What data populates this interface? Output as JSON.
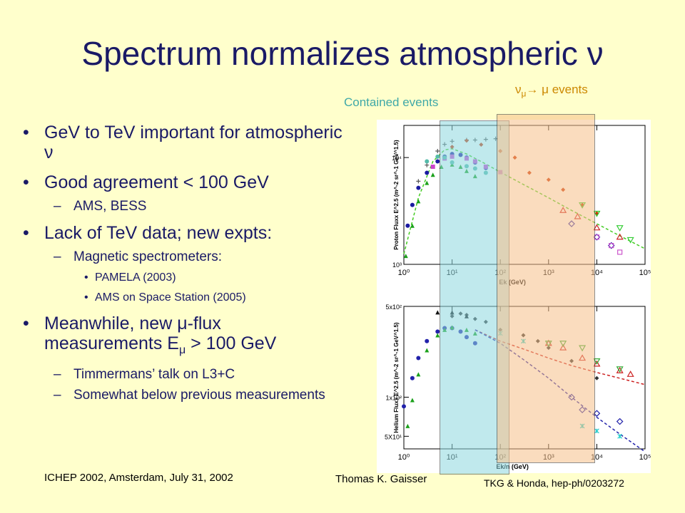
{
  "title": "Spectrum normalizes atmospheric ν",
  "bullets": {
    "b1": "GeV to TeV important for atmospheric ν",
    "b2": "Good agreement < 100 GeV",
    "b2_sub1": "AMS, BESS",
    "b3": "Lack of TeV data; new expts:",
    "b3_sub1": "Magnetic spectrometers:",
    "b3_sub1_sub1": "PAMELA (2003)",
    "b3_sub1_sub2": "AMS on Space Station (2005)",
    "b4_line1": "Meanwhile, new μ-flux",
    "b4_line2_pre": "measurements E",
    "b4_line2_sub": "μ",
    "b4_line2_post": " > 100 GeV",
    "b4_sub1": "Timmermans’ talk on L3+C",
    "b4_sub2": "Somewhat below previous measurements"
  },
  "footer": {
    "conference": "ICHEP 2002, Amsterdam, July 31, 2002",
    "author": "Thomas K. Gaisser",
    "reference": "TKG & Honda, hep-ph/0203272"
  },
  "overlays": {
    "contained_label": "Contained events",
    "muon_label_nu": "ν",
    "muon_label_nu_sub": "μ",
    "muon_label_arrow": "→",
    "muon_label_mu": "μ",
    "muon_label_rest": "events",
    "contained_color": "#8ed8e0",
    "muon_color": "#f7c08a"
  },
  "chart_data": [
    {
      "type": "scatter",
      "xscale": "log",
      "yscale": "log",
      "xlim": [
        1,
        100000
      ],
      "ylim": [
        1000,
        20000
      ],
      "xticklabels": [
        "10⁰",
        "10¹",
        "10²",
        "10³",
        "10⁴",
        "10⁵"
      ],
      "yticklabels": [
        "10⁴",
        "10³"
      ],
      "xlabel": "Ek (GeV)",
      "ylabel": "Proton Fluxx E^2.5 (m^-2 sr^-1 GeV^1.5)",
      "fit_x": [
        1,
        2,
        4,
        7,
        10,
        20,
        50,
        100,
        300,
        1000,
        3000,
        10000,
        30000,
        100000
      ],
      "fit_y": [
        1250,
        4200,
        9200,
        11800,
        12100,
        10800,
        8700,
        7300,
        5600,
        4200,
        3200,
        2400,
        1850,
        1400
      ],
      "series": [
        {
          "values": [
            [
              1.2,
              2300
            ],
            [
              1.5,
              3600
            ],
            [
              2,
              5200
            ],
            [
              3,
              7200
            ],
            [
              5,
              9200
            ],
            [
              7,
              10200
            ],
            [
              10,
              10800
            ],
            [
              15,
              10600
            ],
            [
              20,
              10000
            ],
            [
              30,
              9000
            ],
            [
              50,
              8000
            ]
          ]
        },
        {
          "values": [
            [
              2,
              6000
            ],
            [
              3,
              8500
            ],
            [
              5,
              11500
            ],
            [
              7,
              13300
            ],
            [
              10,
              14200
            ],
            [
              20,
              14600
            ],
            [
              30,
              14600
            ],
            [
              50,
              14800
            ],
            [
              80,
              15000
            ]
          ]
        },
        {
          "values": [
            [
              1.1,
              1200
            ],
            [
              1.5,
              2300
            ],
            [
              2,
              3900
            ],
            [
              3,
              5800
            ],
            [
              4,
              6900
            ],
            [
              6,
              8200
            ],
            [
              10,
              8600
            ],
            [
              15,
              8200
            ],
            [
              20,
              7500
            ],
            [
              30,
              6700
            ]
          ]
        },
        {
          "values": [
            [
              10,
              12600
            ],
            [
              20,
              14400
            ],
            [
              40,
              13200
            ],
            [
              100,
              11500
            ],
            [
              200,
              10000
            ],
            [
              400,
              7200
            ],
            [
              1000,
              6200
            ],
            [
              2000,
              5000
            ],
            [
              5000,
              3600
            ],
            [
              10000,
              3000
            ]
          ]
        },
        {
          "values": [
            [
              4,
              8200
            ],
            [
              7,
              9800
            ],
            [
              10,
              10200
            ],
            [
              20,
              9800
            ],
            [
              30,
              9200
            ],
            [
              50,
              8200
            ],
            [
              100,
              7300
            ]
          ]
        },
        {
          "values": [
            [
              3,
              9200
            ],
            [
              5,
              10200
            ],
            [
              7,
              10000
            ],
            [
              10,
              9000
            ],
            [
              20,
              8300
            ],
            [
              30,
              7900
            ],
            [
              50,
              7200
            ]
          ]
        },
        {
          "values": [
            [
              2000,
              3200
            ],
            [
              4000,
              2800
            ],
            [
              10000,
              2200
            ],
            [
              30000,
              1800
            ]
          ]
        },
        {
          "values": [
            [
              3000,
              2400
            ],
            [
              10000,
              1800
            ],
            [
              20000,
              1500
            ]
          ]
        },
        {
          "values": [
            [
              5000,
              3600
            ],
            [
              10000,
              3000
            ],
            [
              30000,
              2200
            ],
            [
              50000,
              1700
            ]
          ]
        },
        {
          "values": [
            [
              10000,
              1800
            ],
            [
              20000,
              1500
            ],
            [
              30000,
              1300
            ]
          ]
        }
      ]
    },
    {
      "type": "scatter",
      "xscale": "log",
      "yscale": "log",
      "xlim": [
        1,
        100000
      ],
      "ylim": [
        40,
        500
      ],
      "xticklabels": [
        "10⁰",
        "10¹",
        "10²",
        "10³",
        "10⁴",
        "10⁵"
      ],
      "yticklabels": [
        "5x10²",
        "1x10²",
        "5X10¹"
      ],
      "xlabel": "Ek/n (GeV)",
      "ylabel": "Helium Fluxx E^2.5 (m^-2 sr^-1 GeV^1.5)",
      "fit_red_x": [
        30,
        100,
        300,
        1000,
        3000,
        10000,
        100000
      ],
      "fit_red_y": [
        330,
        270,
        235,
        200,
        175,
        155,
        125
      ],
      "fit_blue_x": [
        30,
        100,
        300,
        1000,
        3000,
        10000,
        30000,
        100000
      ],
      "fit_blue_y": [
        330,
        260,
        195,
        140,
        100,
        70,
        52,
        38
      ],
      "series": [
        {
          "values": [
            [
              1,
              85
            ],
            [
              1.5,
              140
            ],
            [
              2,
              200
            ],
            [
              3,
              270
            ],
            [
              5,
              320
            ],
            [
              7,
              340
            ],
            [
              10,
              340
            ],
            [
              15,
              320
            ],
            [
              20,
              290
            ],
            [
              30,
              260
            ]
          ]
        },
        {
          "values": [
            [
              1.2,
              60
            ],
            [
              1.5,
              95
            ],
            [
              2,
              150
            ],
            [
              3,
              230
            ],
            [
              5,
              300
            ],
            [
              7,
              330
            ],
            [
              10,
              345
            ],
            [
              20,
              330
            ],
            [
              30,
              310
            ]
          ]
        },
        {
          "values": [
            [
              10,
              420
            ],
            [
              15,
              440
            ],
            [
              20,
              430
            ],
            [
              30,
              400
            ],
            [
              50,
              380
            ],
            [
              100,
              330
            ],
            [
              300,
              300
            ],
            [
              600,
              270
            ],
            [
              1000,
              240
            ],
            [
              3000,
              190
            ],
            [
              10000,
              140
            ]
          ]
        },
        {
          "values": [
            [
              1000,
              260
            ],
            [
              2000,
              240
            ],
            [
              5000,
              200
            ],
            [
              10000,
              180
            ],
            [
              30000,
              160
            ],
            [
              50000,
              150
            ]
          ]
        },
        {
          "values": [
            [
              1000,
              260
            ],
            [
              2000,
              260
            ],
            [
              5000,
              240
            ],
            [
              10000,
              190
            ],
            [
              30000,
              165
            ]
          ]
        },
        {
          "values": [
            [
              3000,
              100
            ],
            [
              5000,
              80
            ],
            [
              10000,
              75
            ],
            [
              30000,
              65
            ]
          ]
        },
        {
          "values": [
            [
              100,
              310
            ],
            [
              300,
              270
            ],
            [
              5000,
              60
            ],
            [
              10000,
              55
            ],
            [
              30000,
              50
            ]
          ]
        },
        {
          "values": [
            [
              5,
              450
            ],
            [
              10,
              450
            ],
            [
              20,
              420
            ]
          ]
        }
      ]
    }
  ]
}
